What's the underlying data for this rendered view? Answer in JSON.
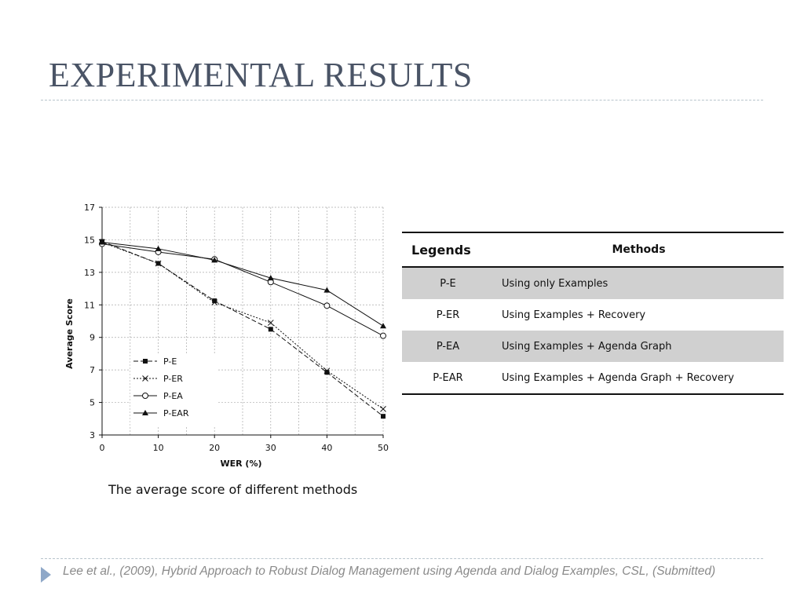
{
  "slide": {
    "title": "EXPERIMENTAL RESULTS",
    "caption": "The average score of different methods",
    "footer": "Lee et al., (2009), Hybrid Approach to Robust Dialog Management using Agenda and Dialog Examples, CSL, (Submitted)"
  },
  "chart_data": {
    "type": "line",
    "title": "",
    "xlabel": "WER (%)",
    "ylabel": "Average Score",
    "xlim": [
      0,
      50
    ],
    "ylim": [
      3,
      17
    ],
    "x_ticks": [
      0,
      10,
      20,
      30,
      40,
      50
    ],
    "y_ticks": [
      3,
      5,
      7,
      9,
      11,
      13,
      15,
      17
    ],
    "grid": true,
    "legend_placement": "lower-left",
    "series": [
      {
        "name": "P-E",
        "marker": "square",
        "line": "dashed",
        "x": [
          0,
          10,
          20,
          30,
          40,
          50
        ],
        "values": [
          14.9,
          13.55,
          11.25,
          9.5,
          6.85,
          4.15
        ]
      },
      {
        "name": "P-ER",
        "marker": "x",
        "line": "dotted",
        "x": [
          0,
          10,
          20,
          30,
          40,
          50
        ],
        "values": [
          14.85,
          13.55,
          11.15,
          9.9,
          6.95,
          4.6
        ]
      },
      {
        "name": "P-EA",
        "marker": "circle",
        "line": "solid",
        "x": [
          0,
          10,
          20,
          30,
          40,
          50
        ],
        "values": [
          14.75,
          14.25,
          13.8,
          12.4,
          10.95,
          9.1
        ]
      },
      {
        "name": "P-EAR",
        "marker": "triangle",
        "line": "solid",
        "x": [
          0,
          10,
          20,
          30,
          40,
          50
        ],
        "values": [
          14.85,
          14.45,
          13.75,
          12.65,
          11.9,
          9.7
        ]
      }
    ]
  },
  "legend_table": {
    "headers": [
      "Legends",
      "Methods"
    ],
    "rows": [
      {
        "legend": "P-E",
        "method": "Using only Examples"
      },
      {
        "legend": "P-ER",
        "method": "Using Examples + Recovery"
      },
      {
        "legend": "P-EA",
        "method": "Using Examples + Agenda Graph"
      },
      {
        "legend": "P-EAR",
        "method": "Using Examples + Agenda Graph + Recovery"
      }
    ]
  },
  "icons": {
    "footer_bullet": "triangle-right-icon"
  },
  "colors": {
    "title": "#4a5466",
    "rule": "#b8c4cc",
    "bullet": "#8fa8c8",
    "footer_text": "#8a8a8a",
    "row_shade": "#d0d0d0",
    "series": "#111111"
  }
}
